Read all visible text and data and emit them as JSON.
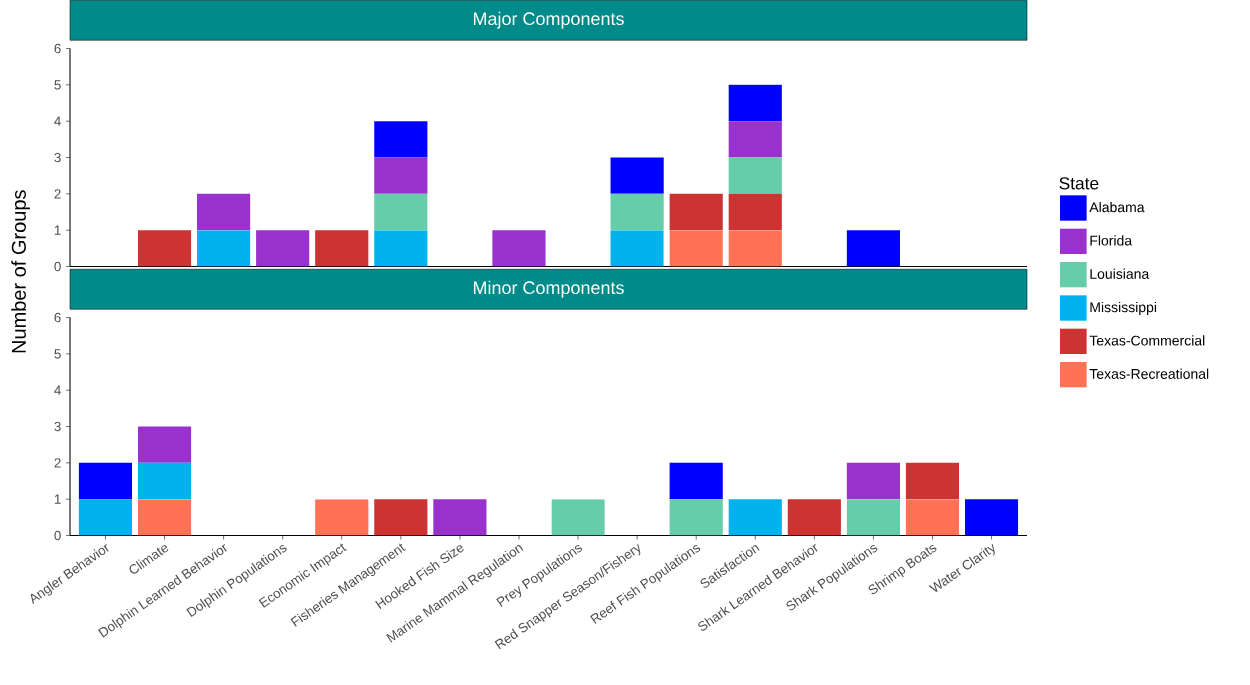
{
  "chart_data": [
    {
      "type": "bar",
      "title": "Major Components",
      "stacked": true,
      "legend": "right",
      "legend_title": "State",
      "tick_labels": "y",
      "categories": [
        null,
        null,
        null,
        null,
        null,
        null,
        null,
        null,
        null,
        null,
        null,
        null,
        null,
        null,
        null,
        null
      ],
      "ylim": [
        0,
        6
      ],
      "yticks": [
        0,
        1,
        2,
        3,
        4,
        5,
        6
      ],
      "series": [
        {
          "name": "Texas-Recreational",
          "color": "#ff7256",
          "values": [
            null,
            null,
            null,
            null,
            null,
            null,
            null,
            null,
            null,
            null,
            1,
            1,
            null,
            null,
            null,
            null
          ]
        },
        {
          "name": "Texas-Commercial",
          "color": "#cd3333",
          "values": [
            null,
            1,
            null,
            null,
            1,
            null,
            null,
            null,
            null,
            null,
            1,
            1,
            null,
            null,
            null,
            null
          ]
        },
        {
          "name": "Mississippi",
          "color": "#00b2ee",
          "values": [
            null,
            null,
            1,
            null,
            null,
            1,
            null,
            null,
            null,
            1,
            null,
            null,
            null,
            null,
            null,
            null
          ]
        },
        {
          "name": "Louisiana",
          "color": "#66cdaa",
          "values": [
            null,
            null,
            null,
            null,
            null,
            1,
            null,
            null,
            null,
            1,
            null,
            1,
            null,
            null,
            null,
            null
          ]
        },
        {
          "name": "Florida",
          "color": "#9932cc",
          "values": [
            null,
            null,
            1,
            1,
            null,
            1,
            null,
            1,
            null,
            null,
            null,
            1,
            null,
            null,
            null,
            null
          ]
        },
        {
          "name": "Alabama",
          "color": "#0000ff",
          "values": [
            null,
            null,
            null,
            null,
            null,
            1,
            null,
            null,
            null,
            1,
            null,
            1,
            null,
            1,
            null,
            null
          ]
        }
      ]
    },
    {
      "type": "bar",
      "title": "Minor Components",
      "stacked": true,
      "ylabel": "Number of Groups",
      "categories": [
        "Angler Behavior",
        "Climate",
        "Dolphin Learned Behavior",
        "Dolphin Populations",
        "Economic Impact",
        "Fisheries Management",
        "Hooked Fish Size",
        "Marine Mammal Regulation",
        "Prey Populations",
        "Red Snapper Season/Fishery",
        "Reef Fish Populations",
        "Satisfaction",
        "Shark Learned Behavior",
        "Shark Populations",
        "Shrimp Boats",
        "Water Clarity"
      ],
      "ylim": [
        0,
        6
      ],
      "yticks": [
        0,
        1,
        2,
        3,
        4,
        5,
        6
      ],
      "series": [
        {
          "color": "#ff7256",
          "values": [
            null,
            1,
            null,
            null,
            1,
            null,
            null,
            null,
            null,
            null,
            null,
            null,
            null,
            null,
            1,
            null
          ]
        },
        {
          "color": "#cd3333",
          "values": [
            null,
            null,
            null,
            null,
            null,
            1,
            null,
            null,
            null,
            null,
            null,
            null,
            1,
            null,
            1,
            null
          ]
        },
        {
          "color": "#00b2ee",
          "values": [
            1,
            1,
            null,
            null,
            null,
            null,
            null,
            null,
            null,
            null,
            null,
            1,
            null,
            null,
            null,
            null
          ]
        },
        {
          "color": "#66cdaa",
          "values": [
            null,
            null,
            null,
            null,
            null,
            null,
            null,
            null,
            1,
            null,
            1,
            null,
            null,
            1,
            null,
            null
          ]
        },
        {
          "color": "#9932cc",
          "values": [
            null,
            1,
            null,
            null,
            null,
            null,
            1,
            null,
            null,
            null,
            null,
            null,
            null,
            1,
            null,
            null
          ]
        },
        {
          "color": "#0000ff",
          "values": [
            1,
            null,
            null,
            null,
            null,
            null,
            null,
            null,
            null,
            null,
            1,
            null,
            null,
            null,
            null,
            1
          ]
        }
      ]
    }
  ]
}
